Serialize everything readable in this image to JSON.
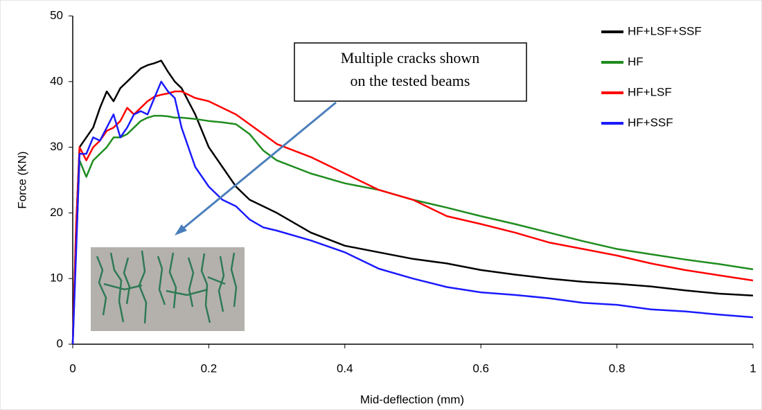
{
  "chart_data": {
    "type": "line",
    "x_label": "Mid-deflection (mm)",
    "y_label": "Force (KN)",
    "annotation": [
      "Multiple cracks shown",
      "on the tested beams"
    ],
    "x": [
      0,
      0.005,
      0.01,
      0.02,
      0.03,
      0.04,
      0.05,
      0.06,
      0.07,
      0.08,
      0.09,
      0.1,
      0.11,
      0.12,
      0.13,
      0.14,
      0.15,
      0.16,
      0.18,
      0.2,
      0.22,
      0.24,
      0.26,
      0.28,
      0.3,
      0.35,
      0.4,
      0.45,
      0.5,
      0.55,
      0.6,
      0.65,
      0.7,
      0.75,
      0.8,
      0.85,
      0.9,
      0.95,
      1
    ],
    "series": [
      {
        "name": "HF+LSF+SSF",
        "color": "#000000",
        "values": [
          0,
          18,
          30,
          31.5,
          33,
          36,
          38.5,
          37,
          39,
          40,
          41,
          42,
          42.5,
          42.8,
          43.2,
          41.5,
          40,
          39,
          35,
          30,
          27,
          24,
          22,
          21,
          20,
          17,
          15,
          14,
          13,
          12.3,
          11.3,
          10.6,
          10,
          9.5,
          9.2,
          8.8,
          8.2,
          7.7,
          7.4
        ]
      },
      {
        "name": "HF",
        "color": "#1e8c1e",
        "values": [
          0,
          15,
          28,
          25.5,
          28,
          29,
          30,
          31.5,
          31.5,
          32,
          33,
          34,
          34.5,
          34.8,
          34.8,
          34.7,
          34.5,
          34.5,
          34.3,
          34,
          33.8,
          33.5,
          32,
          29.5,
          28,
          26,
          24.5,
          23.5,
          22,
          20.8,
          19.5,
          18.3,
          17,
          15.7,
          14.5,
          13.7,
          12.9,
          12.2,
          11.4
        ]
      },
      {
        "name": "HF+LSF",
        "color": "#ff0000",
        "values": [
          0,
          18,
          30,
          28,
          30,
          31,
          32.5,
          33,
          34,
          36,
          35,
          36,
          37,
          37.7,
          38,
          38.2,
          38.5,
          38.5,
          37.5,
          37,
          36,
          35,
          33.5,
          32,
          30.5,
          28.5,
          26,
          23.5,
          22,
          19.5,
          18.3,
          17,
          15.5,
          14.5,
          13.5,
          12.3,
          11.3,
          10.5,
          9.7
        ]
      },
      {
        "name": "HF+SSF",
        "color": "#1a1aff",
        "values": [
          0,
          14,
          29,
          29,
          31.5,
          31,
          33,
          35,
          31.5,
          33,
          35,
          35.5,
          35,
          37.5,
          40,
          38.5,
          37.5,
          33,
          27,
          24,
          22,
          21,
          19,
          17.8,
          17.3,
          15.8,
          14,
          11.5,
          10,
          8.7,
          7.9,
          7.5,
          7,
          6.3,
          6,
          5.3,
          5,
          4.5,
          4.1
        ]
      }
    ],
    "xlim": [
      0,
      1
    ],
    "xticks": [
      0,
      0.2,
      0.4,
      0.6,
      0.8,
      1
    ],
    "ylim": [
      0,
      50
    ],
    "yticks": [
      0,
      10,
      20,
      30,
      40,
      50
    ],
    "legend": "top-right"
  }
}
